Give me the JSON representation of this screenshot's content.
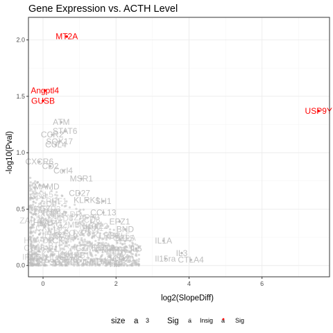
{
  "chart_data": {
    "type": "scatter",
    "title": "Gene Expression vs. ACTH Level",
    "xlabel": "log2(SlopeDiff)",
    "ylabel": "-log10(Pval)",
    "xlim": [
      -0.4,
      7.85
    ],
    "ylim": [
      -0.1,
      2.2
    ],
    "x_ticks": [
      0,
      2,
      4,
      6
    ],
    "y_ticks": [
      0.0,
      0.5,
      1.0,
      1.5,
      2.0
    ],
    "y_tick_labels": [
      "0.0",
      "0.5",
      "1.0",
      "1.5",
      "2.0"
    ],
    "grid": true,
    "colors": {
      "Insig": "#bebebe",
      "Sig": "#ff0000"
    },
    "legend": {
      "position": "bottom",
      "size_title": "size",
      "size_key": "a",
      "size_value": "3",
      "sig_title": "Sig",
      "items": [
        "Insig",
        "Sig"
      ]
    },
    "labeled_points": [
      {
        "label": "MT2A",
        "x": 0.65,
        "y": 2.03,
        "group": "Sig"
      },
      {
        "label": "Angptl4",
        "x": 0.05,
        "y": 1.55,
        "group": "Sig"
      },
      {
        "label": "GUSB",
        "x": 0.0,
        "y": 1.46,
        "group": "Sig"
      },
      {
        "label": "USP9Y",
        "x": 7.55,
        "y": 1.37,
        "group": "Sig"
      },
      {
        "label": "ATM",
        "x": 0.5,
        "y": 1.27,
        "group": "Insig"
      },
      {
        "label": "STAT6",
        "x": 0.6,
        "y": 1.19,
        "group": "Insig"
      },
      {
        "label": "CCR2",
        "x": 0.25,
        "y": 1.16,
        "group": "Insig"
      },
      {
        "label": "SOX17",
        "x": 0.45,
        "y": 1.1,
        "group": "Insig"
      },
      {
        "label": "CCL4",
        "x": 0.35,
        "y": 1.07,
        "group": "Insig"
      },
      {
        "label": "CXCR6",
        "x": -0.1,
        "y": 0.92,
        "group": "Insig"
      },
      {
        "label": "CD2",
        "x": 0.2,
        "y": 0.88,
        "group": "Insig"
      },
      {
        "label": "Ccrl4",
        "x": 0.55,
        "y": 0.84,
        "group": "Insig"
      },
      {
        "label": "MSR1",
        "x": 1.05,
        "y": 0.77,
        "group": "Insig"
      },
      {
        "label": "MAMD",
        "x": 0.1,
        "y": 0.7,
        "group": "Insig"
      },
      {
        "label": "CD27",
        "x": 1.0,
        "y": 0.64,
        "group": "Insig"
      },
      {
        "label": "KLRK1",
        "x": 1.2,
        "y": 0.58,
        "group": "Insig"
      },
      {
        "label": "SH1",
        "x": 1.65,
        "y": 0.57,
        "group": "Insig"
      },
      {
        "label": "CCL13",
        "x": 1.65,
        "y": 0.47,
        "group": "Insig"
      },
      {
        "label": "EPZ1",
        "x": 2.1,
        "y": 0.39,
        "group": "Insig"
      },
      {
        "label": "HLA",
        "x": -0.05,
        "y": 0.38,
        "group": "Insig"
      },
      {
        "label": "BND",
        "x": 2.25,
        "y": 0.32,
        "group": "Insig"
      },
      {
        "label": "IL1A",
        "x": 3.3,
        "y": 0.22,
        "group": "Insig"
      },
      {
        "label": "MAP",
        "x": 1.85,
        "y": 0.14,
        "group": "Insig"
      },
      {
        "label": "IL5",
        "x": 2.55,
        "y": 0.15,
        "group": "Insig"
      },
      {
        "label": "IL3",
        "x": 3.8,
        "y": 0.11,
        "group": "Insig"
      },
      {
        "label": "Il15ra",
        "x": 3.35,
        "y": 0.06,
        "group": "Insig"
      },
      {
        "label": "CTLA4",
        "x": 4.05,
        "y": 0.05,
        "group": "Insig"
      },
      {
        "label": "CD20",
        "x": 2.2,
        "y": 0.06,
        "group": "Insig"
      },
      {
        "label": "HIF",
        "x": 2.0,
        "y": 0.01,
        "group": "Insig"
      }
    ]
  }
}
